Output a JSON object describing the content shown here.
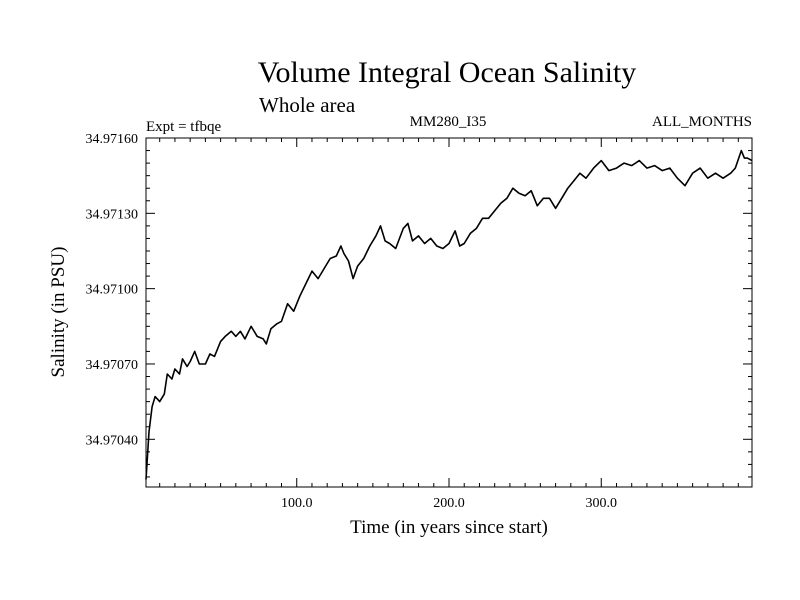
{
  "chart_data": {
    "type": "line",
    "title": "Volume Integral Ocean Salinity",
    "subtitle": "Whole area",
    "expt_label": "Expt = tfbqe",
    "center_label": "MM280_I35",
    "right_label": "ALL_MONTHS",
    "xlabel": "Time (in years since start)",
    "ylabel": "Salinity (in PSU)",
    "xlim": [
      1,
      399
    ],
    "ylim": [
      34.97021,
      34.9716
    ],
    "x_ticks": [
      100,
      200,
      300
    ],
    "x_tick_labels": [
      "100.0",
      "200.0",
      "300.0"
    ],
    "y_ticks": [
      34.9704,
      34.9707,
      34.971,
      34.9713,
      34.9716
    ],
    "y_tick_labels": [
      "34.97040",
      "34.97070",
      "34.97100",
      "34.97130",
      "34.97160"
    ],
    "grid": false,
    "line_color": "#000000",
    "series": [
      {
        "x": [
          1,
          3,
          5,
          7,
          10,
          13,
          15,
          18,
          20,
          23,
          25,
          28,
          30,
          33,
          36,
          40,
          43,
          46,
          50,
          53,
          57,
          60,
          63,
          66,
          70,
          74,
          78,
          80,
          83,
          87,
          90,
          94,
          98,
          102,
          106,
          110,
          114,
          118,
          122,
          126,
          129,
          131,
          134,
          137,
          140,
          144,
          148,
          152,
          155,
          158,
          161,
          165,
          170,
          173,
          176,
          180,
          184,
          188,
          192,
          196,
          200,
          204,
          207,
          210,
          214,
          218,
          222,
          226,
          230,
          234,
          238,
          242,
          246,
          250,
          254,
          258,
          262,
          266,
          270,
          274,
          278,
          282,
          286,
          290,
          295,
          300,
          305,
          310,
          315,
          320,
          325,
          330,
          335,
          340,
          345,
          350,
          355,
          360,
          365,
          370,
          375,
          380,
          385,
          388,
          392,
          394,
          396,
          399
        ],
        "y": [
          34.97024,
          34.97043,
          34.97053,
          34.97057,
          34.97055,
          34.97058,
          34.97066,
          34.97064,
          34.97068,
          34.97066,
          34.97072,
          34.97069,
          34.97071,
          34.97075,
          34.9707,
          34.9707,
          34.97074,
          34.97073,
          34.97079,
          34.97081,
          34.97083,
          34.97081,
          34.97083,
          34.9708,
          34.97085,
          34.97081,
          34.9708,
          34.97078,
          34.97084,
          34.97086,
          34.97087,
          34.97094,
          34.97091,
          34.97097,
          34.97102,
          34.97107,
          34.97104,
          34.97108,
          34.97112,
          34.97113,
          34.97117,
          34.97114,
          34.97111,
          34.97104,
          34.97109,
          34.97112,
          34.97117,
          34.97121,
          34.97125,
          34.97119,
          34.97118,
          34.97116,
          34.97124,
          34.97126,
          34.97119,
          34.97121,
          34.97118,
          34.9712,
          34.97117,
          34.97116,
          34.97118,
          34.97123,
          34.97117,
          34.97118,
          34.97122,
          34.97124,
          34.97128,
          34.97128,
          34.97131,
          34.97134,
          34.97136,
          34.9714,
          34.97138,
          34.97137,
          34.97139,
          34.97133,
          34.97136,
          34.97136,
          34.97132,
          34.97136,
          34.9714,
          34.97143,
          34.97146,
          34.97144,
          34.97148,
          34.97151,
          34.97147,
          34.97148,
          34.9715,
          34.97149,
          34.97151,
          34.97148,
          34.97149,
          34.97147,
          34.97148,
          34.97144,
          34.97141,
          34.97146,
          34.97148,
          34.97144,
          34.97146,
          34.97144,
          34.97146,
          34.97148,
          34.97155,
          34.97152,
          34.97152,
          34.97151
        ]
      }
    ]
  }
}
